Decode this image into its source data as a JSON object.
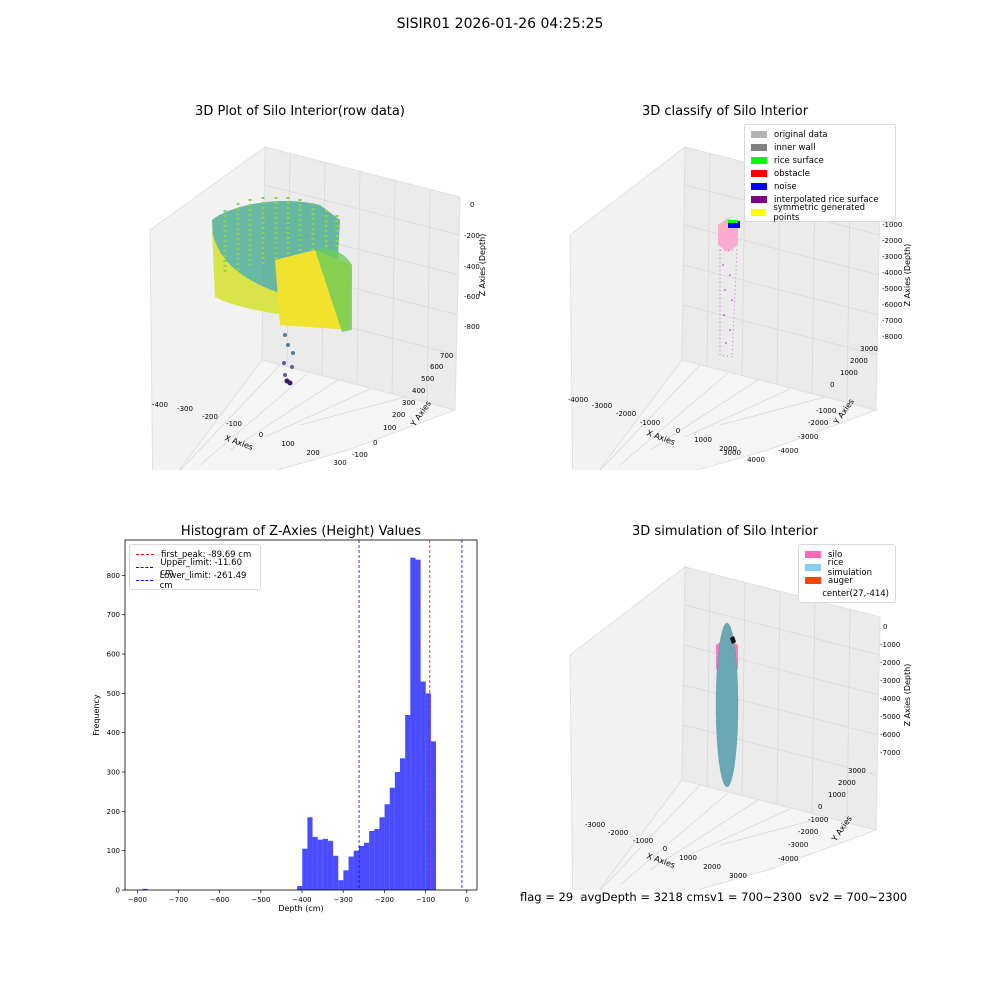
{
  "suptitle": "SISIR01 2026-01-26 04:25:25",
  "panels": {
    "raw": {
      "title": "3D Plot of Silo Interior(row data)",
      "xlabel": "X Axies",
      "ylabel": "Y Axies",
      "zlabel": "Z Axies (Depth)",
      "xticks": [
        "-400",
        "-300",
        "-200",
        "-100",
        "0",
        "100",
        "200",
        "300"
      ],
      "yticks": [
        "-100",
        "0",
        "100",
        "200",
        "300",
        "400",
        "500",
        "600",
        "700"
      ],
      "zticks": [
        "0",
        "-200",
        "-400",
        "-600",
        "-800"
      ]
    },
    "classify": {
      "title": "3D classify of Silo Interior",
      "xlabel": "X Axies",
      "ylabel": "Y Axies",
      "zlabel": "Z Axies (Depth)",
      "xticks": [
        "-4000",
        "-3000",
        "-2000",
        "-1000",
        "0",
        "1000",
        "2000",
        "3000",
        "4000"
      ],
      "yticks": [
        "-4000",
        "-3000",
        "-2000",
        "-1000",
        "0",
        "1000",
        "2000",
        "3000"
      ],
      "zticks": [
        "0",
        "-1000",
        "-2000",
        "-3000",
        "-4000",
        "-5000",
        "-6000",
        "-7000",
        "-8000"
      ],
      "legend": [
        {
          "label": "original data",
          "color": "#b3b3b3"
        },
        {
          "label": "inner wall",
          "color": "#808080"
        },
        {
          "label": "rice surface",
          "color": "#00ff00"
        },
        {
          "label": "obstacle",
          "color": "#ff0000"
        },
        {
          "label": "noise",
          "color": "#0000ff"
        },
        {
          "label": "interpolated rice surface",
          "color": "#800080"
        },
        {
          "label": "symmetric generated points",
          "color": "#ffff00"
        }
      ]
    },
    "simulation": {
      "title": "3D simulation of Silo Interior",
      "xlabel": "X Axies",
      "ylabel": "Y Axies",
      "zlabel": "Z Axies (Depth)",
      "xticks": [
        "-3000",
        "-2000",
        "-1000",
        "0",
        "1000",
        "2000",
        "3000"
      ],
      "yticks": [
        "-4000",
        "-3000",
        "-2000",
        "-1000",
        "0",
        "1000",
        "2000",
        "3000"
      ],
      "zticks": [
        "0",
        "-1000",
        "-2000",
        "-3000",
        "-4000",
        "-5000",
        "-6000",
        "-7000"
      ],
      "legend": [
        {
          "label": "silo",
          "color": "#ff69b4"
        },
        {
          "label": "rice simulation",
          "color": "#87ceeb"
        },
        {
          "label": "auger",
          "color": "#ff4500"
        },
        {
          "label": "center(27,-414)",
          "color": ""
        }
      ]
    }
  },
  "footer": {
    "flag": "flag = 29",
    "avg": "avgDepth = 3218 cm",
    "sv1": "sv1 = 700~2300",
    "sv2": "sv2 = 700~2300"
  },
  "chart_data": {
    "type": "bar",
    "title": "Histogram of Z-Axies (Height) Values",
    "xlabel": "Depth (cm)",
    "ylabel": "Frequency",
    "xlim": [
      -830,
      25
    ],
    "ylim": [
      0,
      890
    ],
    "xticks": [
      -800,
      -700,
      -600,
      -500,
      -400,
      -300,
      -200,
      -100,
      0
    ],
    "yticks": [
      0,
      100,
      200,
      300,
      400,
      500,
      600,
      700,
      800
    ],
    "bin_width": 12.5,
    "color": "#0000ff",
    "bins": [
      {
        "x0": -788,
        "count": 3
      },
      {
        "x0": -412,
        "count": 10
      },
      {
        "x0": -399.5,
        "count": 105
      },
      {
        "x0": -387,
        "count": 185
      },
      {
        "x0": -374.5,
        "count": 135
      },
      {
        "x0": -362,
        "count": 128
      },
      {
        "x0": -349.5,
        "count": 130
      },
      {
        "x0": -337,
        "count": 125
      },
      {
        "x0": -324.5,
        "count": 87
      },
      {
        "x0": -312,
        "count": 25
      },
      {
        "x0": -299.5,
        "count": 50
      },
      {
        "x0": -287,
        "count": 85
      },
      {
        "x0": -274.5,
        "count": 100
      },
      {
        "x0": -262,
        "count": 112
      },
      {
        "x0": -249.5,
        "count": 120
      },
      {
        "x0": -237,
        "count": 150
      },
      {
        "x0": -224.5,
        "count": 155
      },
      {
        "x0": -212,
        "count": 185
      },
      {
        "x0": -199.5,
        "count": 218
      },
      {
        "x0": -187,
        "count": 260
      },
      {
        "x0": -174.5,
        "count": 300
      },
      {
        "x0": -162,
        "count": 335
      },
      {
        "x0": -149.5,
        "count": 445
      },
      {
        "x0": -137,
        "count": 845
      },
      {
        "x0": -124.5,
        "count": 840
      },
      {
        "x0": -112,
        "count": 530
      },
      {
        "x0": -99.5,
        "count": 500
      },
      {
        "x0": -87,
        "count": 378
      }
    ],
    "vlines": [
      {
        "label": "first_peak: -89.69 cm",
        "x": -89.69,
        "color": "#ff0000"
      },
      {
        "label": "Upper_limit: -11.60 cm",
        "x": -11.6,
        "color": "#0000ff"
      },
      {
        "label": "Lower_limit: -261.49 cm",
        "x": -261.49,
        "color": "#0000ff"
      }
    ]
  }
}
